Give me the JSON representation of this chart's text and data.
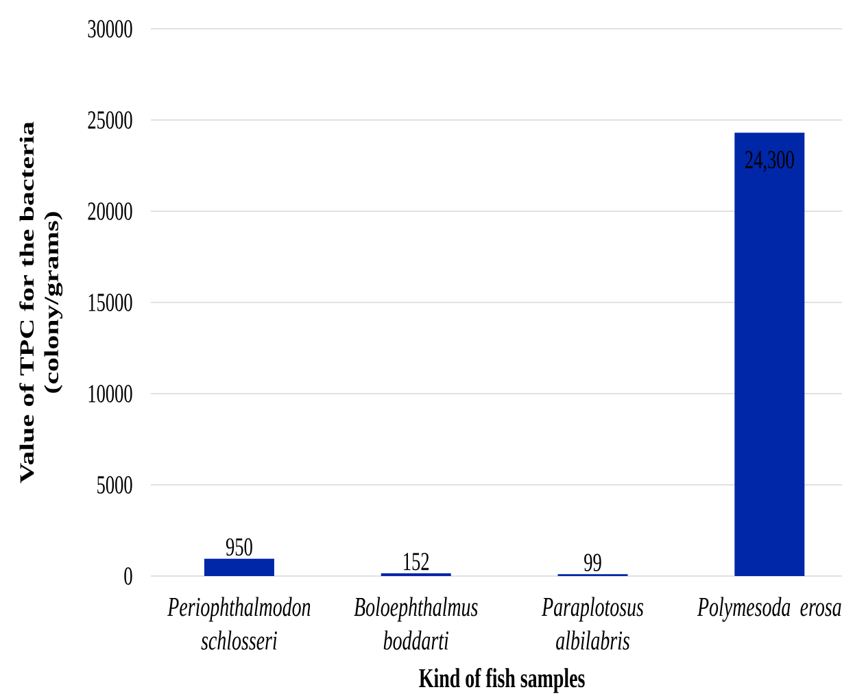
{
  "chart_data": {
    "type": "bar",
    "xlabel": "Kind of fish samples",
    "ylabel": "Value of TPC for the bacteria (colony/grams)",
    "categories": [
      "Periophthalmodon schlosseri",
      "Boloephthalmus boddarti",
      "Paraplotosus albilabris",
      "Polymesoda erosa"
    ],
    "values": [
      950,
      152,
      99,
      24300
    ],
    "value_labels": [
      "950",
      "152",
      "99",
      "24,300"
    ],
    "color": "#0027a8",
    "ylim": [
      0,
      30000
    ],
    "yticks": [
      0,
      5000,
      10000,
      15000,
      20000,
      25000,
      30000
    ],
    "grid": "y"
  }
}
